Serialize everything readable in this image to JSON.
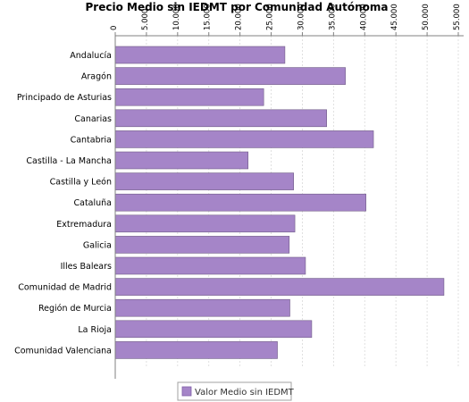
{
  "chart_data": {
    "type": "bar",
    "orientation": "horizontal",
    "title": "Precio Medio sin IEDMT por Comunidad Autónoma",
    "xlabel": "",
    "ylabel": "",
    "xlim": [
      0,
      55000
    ],
    "tick_values": [
      0,
      5000,
      10000,
      15000,
      20000,
      25000,
      30000,
      35000,
      40000,
      45000,
      50000,
      55000
    ],
    "tick_labels": [
      "0",
      "5.000",
      "10.000",
      "15.000",
      "20.000",
      "25.000",
      "30.000",
      "35.000",
      "40.000",
      "45.000",
      "50.000",
      "55.000"
    ],
    "grid": true,
    "legend_position": "bottom",
    "categories": [
      "Andalucía",
      "Aragón",
      "Principado de Asturias",
      "Canarias",
      "Cantabria",
      "Castilla - La Mancha",
      "Castilla y León",
      "Cataluña",
      "Extremadura",
      "Galicia",
      "Illes Balears",
      "Comunidad de Madrid",
      "Región de Murcia",
      "La Rioja",
      "Comunidad Valenciana"
    ],
    "series": [
      {
        "name": "Valor Medio sin IEDMT",
        "color": "#a585c8",
        "values": [
          27200,
          36900,
          23800,
          33900,
          41400,
          21300,
          28600,
          40200,
          28800,
          27900,
          30500,
          52700,
          28000,
          31500,
          26000
        ]
      }
    ]
  }
}
